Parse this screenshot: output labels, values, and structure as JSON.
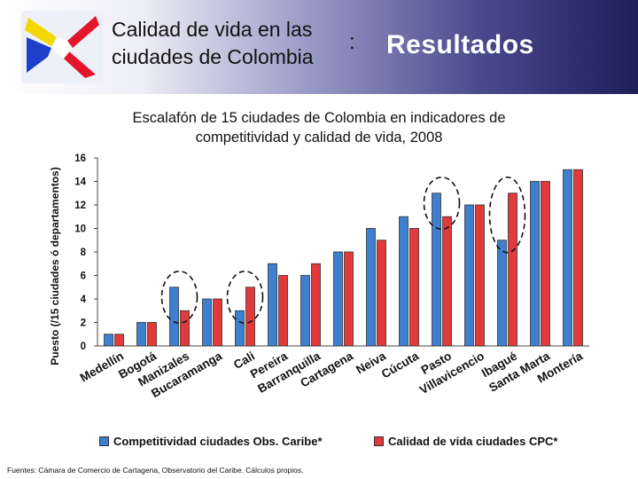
{
  "header": {
    "title_line1": "Calidad de vida en las",
    "title_line2": "ciudades de Colombia",
    "separator": ":",
    "section": "Resultados"
  },
  "logo": {
    "icon": "colombia-x-logo",
    "colors": [
      "#f2d700",
      "#1d3fc9",
      "#e3152b"
    ]
  },
  "chart_data": {
    "type": "bar",
    "title_line1": "Escalafón de 15 ciudades de Colombia en indicadores de",
    "title_line2": "competitividad y calidad de vida, 2008",
    "ylabel": "Puesto (/15 ciudades ó departamentos)",
    "xlabel": "",
    "ylim": [
      0,
      16
    ],
    "yticks": [
      0,
      2,
      4,
      6,
      8,
      10,
      12,
      14,
      16
    ],
    "grid": false,
    "categories": [
      "Medellín",
      "Bogotá",
      "Manizales",
      "Bucaramanga",
      "Cali",
      "Pereira",
      "Barranquilla",
      "Cartagena",
      "Neiva",
      "Cúcuta",
      "Pasto",
      "Villavicencio",
      "Ibagué",
      "Santa Marta",
      "Montería"
    ],
    "series": [
      {
        "name": "Competitividad ciudades Obs. Caribe*",
        "color": "#3f7fd0",
        "values": [
          1,
          2,
          5,
          4,
          3,
          7,
          6,
          8,
          10,
          11,
          13,
          12,
          9,
          14,
          15
        ]
      },
      {
        "name": "Calidad de vida ciudades CPC*",
        "color": "#e23a3a",
        "values": [
          1,
          2,
          3,
          4,
          5,
          6,
          7,
          8,
          9,
          10,
          11,
          12,
          13,
          14,
          15
        ]
      }
    ],
    "highlighted": [
      "Manizales",
      "Cali",
      "Pasto",
      "Ibagué"
    ],
    "legend_position": "bottom"
  },
  "source": "Fuentes:  Cámara de Comercio de Cartagena, Observatorio del Caribe. Cálculos propios."
}
